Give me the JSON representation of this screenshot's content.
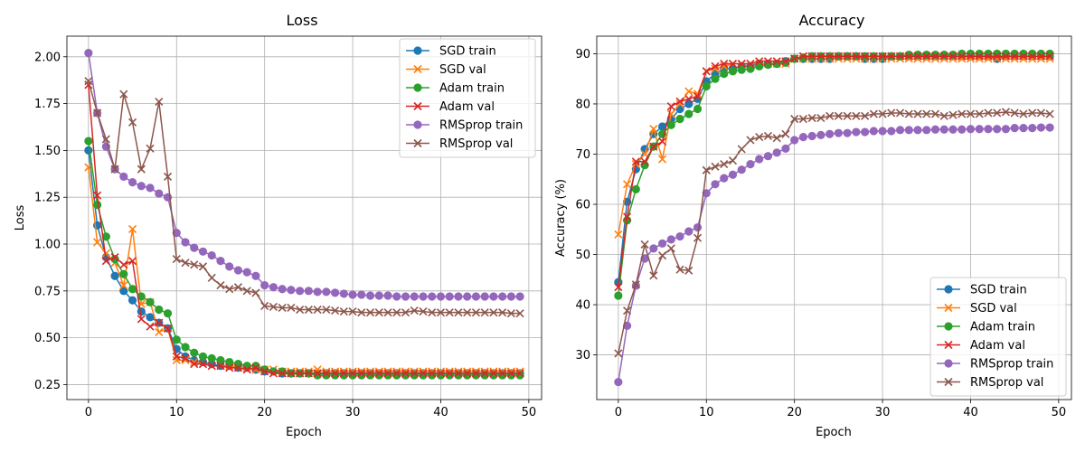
{
  "chart_data": [
    {
      "type": "line",
      "title": "Loss",
      "xlabel": "Epoch",
      "ylabel": "Loss",
      "xlim": [
        -2.45,
        51.45
      ],
      "ylim": [
        0.17,
        2.11
      ],
      "xticks": [
        0,
        10,
        20,
        30,
        40,
        50
      ],
      "yticks": [
        0.25,
        0.5,
        0.75,
        1.0,
        1.25,
        1.5,
        1.75,
        2.0
      ],
      "ytick_labels": [
        "0.25",
        "0.50",
        "0.75",
        "1.00",
        "1.25",
        "1.50",
        "1.75",
        "2.00"
      ],
      "grid": true,
      "legend_position": "top-right",
      "x": [
        0,
        1,
        2,
        3,
        4,
        5,
        6,
        7,
        8,
        9,
        10,
        11,
        12,
        13,
        14,
        15,
        16,
        17,
        18,
        19,
        20,
        21,
        22,
        23,
        24,
        25,
        26,
        27,
        28,
        29,
        30,
        31,
        32,
        33,
        34,
        35,
        36,
        37,
        38,
        39,
        40,
        41,
        42,
        43,
        44,
        45,
        46,
        47,
        48,
        49
      ],
      "series": [
        {
          "name": "SGD train",
          "color": "#1f77b4",
          "marker": "o",
          "values": [
            1.5,
            1.1,
            0.93,
            0.83,
            0.75,
            0.7,
            0.64,
            0.61,
            0.58,
            0.55,
            0.44,
            0.4,
            0.38,
            0.37,
            0.36,
            0.35,
            0.35,
            0.34,
            0.34,
            0.33,
            0.32,
            0.32,
            0.31,
            0.31,
            0.31,
            0.31,
            0.31,
            0.31,
            0.31,
            0.31,
            0.31,
            0.31,
            0.31,
            0.31,
            0.31,
            0.31,
            0.31,
            0.31,
            0.31,
            0.31,
            0.31,
            0.31,
            0.31,
            0.31,
            0.31,
            0.31,
            0.31,
            0.31,
            0.31,
            0.31
          ]
        },
        {
          "name": "SGD val",
          "color": "#ff7f0e",
          "marker": "x",
          "values": [
            1.41,
            1.01,
            0.95,
            0.9,
            0.78,
            1.08,
            0.68,
            0.69,
            0.53,
            0.55,
            0.38,
            0.38,
            0.37,
            0.36,
            0.35,
            0.35,
            0.35,
            0.34,
            0.34,
            0.33,
            0.33,
            0.33,
            0.32,
            0.32,
            0.32,
            0.32,
            0.33,
            0.32,
            0.32,
            0.32,
            0.32,
            0.32,
            0.32,
            0.32,
            0.32,
            0.32,
            0.32,
            0.32,
            0.32,
            0.32,
            0.32,
            0.32,
            0.32,
            0.32,
            0.32,
            0.32,
            0.32,
            0.32,
            0.32,
            0.32
          ]
        },
        {
          "name": "Adam train",
          "color": "#2ca02c",
          "marker": "o",
          "values": [
            1.55,
            1.21,
            1.04,
            0.92,
            0.84,
            0.76,
            0.72,
            0.69,
            0.65,
            0.63,
            0.49,
            0.45,
            0.42,
            0.4,
            0.39,
            0.38,
            0.37,
            0.36,
            0.35,
            0.35,
            0.33,
            0.32,
            0.32,
            0.31,
            0.31,
            0.31,
            0.3,
            0.3,
            0.3,
            0.3,
            0.3,
            0.3,
            0.3,
            0.3,
            0.3,
            0.3,
            0.3,
            0.3,
            0.3,
            0.3,
            0.3,
            0.3,
            0.3,
            0.3,
            0.3,
            0.3,
            0.3,
            0.3,
            0.3,
            0.3
          ]
        },
        {
          "name": "Adam val",
          "color": "#d62728",
          "marker": "x",
          "values": [
            1.85,
            1.26,
            0.91,
            0.93,
            0.89,
            0.91,
            0.6,
            0.56,
            0.58,
            0.55,
            0.4,
            0.39,
            0.36,
            0.36,
            0.35,
            0.35,
            0.34,
            0.34,
            0.33,
            0.34,
            0.32,
            0.31,
            0.31,
            0.31,
            0.31,
            0.31,
            0.31,
            0.31,
            0.31,
            0.31,
            0.31,
            0.31,
            0.31,
            0.31,
            0.31,
            0.31,
            0.31,
            0.31,
            0.31,
            0.31,
            0.31,
            0.31,
            0.31,
            0.31,
            0.31,
            0.31,
            0.31,
            0.31,
            0.31,
            0.31
          ]
        },
        {
          "name": "RMSprop train",
          "color": "#9467bd",
          "marker": "o",
          "values": [
            2.02,
            1.7,
            1.52,
            1.4,
            1.36,
            1.33,
            1.31,
            1.3,
            1.27,
            1.25,
            1.06,
            1.01,
            0.98,
            0.96,
            0.94,
            0.91,
            0.88,
            0.86,
            0.85,
            0.83,
            0.78,
            0.77,
            0.76,
            0.755,
            0.75,
            0.75,
            0.745,
            0.745,
            0.74,
            0.735,
            0.73,
            0.73,
            0.725,
            0.725,
            0.725,
            0.72,
            0.72,
            0.72,
            0.72,
            0.72,
            0.72,
            0.72,
            0.72,
            0.72,
            0.72,
            0.72,
            0.72,
            0.72,
            0.72,
            0.72
          ]
        },
        {
          "name": "RMSprop val",
          "color": "#8c564b",
          "marker": "x",
          "values": [
            1.87,
            1.7,
            1.56,
            1.4,
            1.8,
            1.65,
            1.4,
            1.51,
            1.76,
            1.36,
            0.92,
            0.9,
            0.89,
            0.88,
            0.82,
            0.78,
            0.76,
            0.77,
            0.75,
            0.74,
            0.67,
            0.665,
            0.66,
            0.66,
            0.65,
            0.65,
            0.65,
            0.65,
            0.645,
            0.64,
            0.64,
            0.635,
            0.635,
            0.635,
            0.635,
            0.635,
            0.635,
            0.645,
            0.64,
            0.635,
            0.635,
            0.635,
            0.635,
            0.635,
            0.635,
            0.635,
            0.635,
            0.635,
            0.63,
            0.63
          ]
        }
      ]
    },
    {
      "type": "line",
      "title": "Accuracy",
      "xlabel": "Epoch",
      "ylabel": "Accuracy (%)",
      "xlim": [
        -2.45,
        51.45
      ],
      "ylim": [
        21.1,
        93.5
      ],
      "xticks": [
        0,
        10,
        20,
        30,
        40,
        50
      ],
      "yticks": [
        30,
        40,
        50,
        60,
        70,
        80,
        90
      ],
      "ytick_labels": [
        "30",
        "40",
        "50",
        "60",
        "70",
        "80",
        "90"
      ],
      "grid": true,
      "legend_position": "bottom-right",
      "x": [
        0,
        1,
        2,
        3,
        4,
        5,
        6,
        7,
        8,
        9,
        10,
        11,
        12,
        13,
        14,
        15,
        16,
        17,
        18,
        19,
        20,
        21,
        22,
        23,
        24,
        25,
        26,
        27,
        28,
        29,
        30,
        31,
        32,
        33,
        34,
        35,
        36,
        37,
        38,
        39,
        40,
        41,
        42,
        43,
        44,
        45,
        46,
        47,
        48,
        49
      ],
      "series": [
        {
          "name": "SGD train",
          "color": "#1f77b4",
          "marker": "o",
          "values": [
            44.5,
            60.5,
            67.0,
            71.0,
            74.0,
            75.5,
            77.0,
            79.0,
            80.0,
            81.0,
            84.5,
            86.0,
            87.0,
            87.0,
            87.5,
            87.5,
            88.0,
            88.0,
            88.0,
            88.5,
            89.0,
            89.0,
            89.0,
            89.0,
            89.0,
            89.5,
            89.5,
            89.5,
            89.0,
            89.0,
            89.0,
            89.5,
            89.5,
            89.5,
            89.5,
            89.5,
            89.5,
            89.5,
            89.5,
            89.5,
            89.5,
            89.5,
            89.5,
            89.0,
            89.5,
            89.5,
            89.5,
            89.5,
            89.5,
            89.5
          ]
        },
        {
          "name": "SGD val",
          "color": "#ff7f0e",
          "marker": "x",
          "values": [
            54.0,
            64.0,
            68.0,
            70.0,
            75.0,
            69.0,
            78.0,
            80.0,
            82.5,
            82.0,
            86.5,
            87.0,
            87.5,
            88.0,
            88.0,
            88.0,
            88.0,
            88.0,
            88.0,
            88.0,
            89.0,
            89.0,
            89.0,
            89.0,
            89.0,
            89.0,
            89.0,
            89.0,
            89.0,
            89.0,
            89.0,
            89.0,
            89.0,
            89.0,
            89.0,
            89.0,
            89.0,
            89.0,
            89.0,
            89.0,
            89.0,
            89.0,
            89.0,
            89.0,
            89.0,
            89.0,
            89.0,
            89.0,
            89.0,
            89.0
          ]
        },
        {
          "name": "Adam train",
          "color": "#2ca02c",
          "marker": "o",
          "values": [
            41.8,
            56.8,
            63.0,
            67.8,
            71.5,
            74.0,
            75.8,
            77.0,
            78.0,
            79.0,
            83.5,
            85.0,
            86.0,
            86.5,
            86.8,
            87.0,
            87.5,
            87.8,
            88.0,
            88.2,
            89.0,
            89.2,
            89.5,
            89.5,
            89.5,
            89.5,
            89.5,
            89.5,
            89.5,
            89.5,
            89.5,
            89.5,
            89.5,
            89.8,
            89.8,
            89.8,
            89.8,
            89.8,
            89.8,
            90.0,
            90.0,
            90.0,
            90.0,
            90.0,
            90.0,
            90.0,
            90.0,
            90.0,
            90.0,
            90.0
          ]
        },
        {
          "name": "Adam val",
          "color": "#d62728",
          "marker": "x",
          "values": [
            43.5,
            57.5,
            68.5,
            68.5,
            71.5,
            72.5,
            79.5,
            80.5,
            81.0,
            81.5,
            86.5,
            87.5,
            88.0,
            88.0,
            88.0,
            88.0,
            88.5,
            88.5,
            88.5,
            88.5,
            89.0,
            89.5,
            89.5,
            89.5,
            89.5,
            89.5,
            89.5,
            89.5,
            89.5,
            89.5,
            89.5,
            89.5,
            89.5,
            89.5,
            89.5,
            89.5,
            89.5,
            89.5,
            89.5,
            89.5,
            89.5,
            89.5,
            89.5,
            89.5,
            89.5,
            89.5,
            89.5,
            89.5,
            89.5,
            89.5
          ]
        },
        {
          "name": "RMSprop train",
          "color": "#9467bd",
          "marker": "o",
          "values": [
            24.6,
            35.8,
            43.8,
            49.2,
            51.2,
            52.2,
            53.0,
            53.6,
            54.6,
            55.4,
            62.2,
            64.0,
            65.2,
            65.9,
            66.9,
            68.0,
            69.0,
            69.6,
            70.3,
            71.1,
            72.8,
            73.4,
            73.6,
            73.8,
            74.0,
            74.2,
            74.2,
            74.4,
            74.4,
            74.6,
            74.6,
            74.6,
            74.8,
            74.8,
            74.8,
            74.8,
            74.9,
            74.9,
            74.9,
            74.9,
            75.0,
            75.0,
            75.0,
            75.0,
            75.0,
            75.2,
            75.2,
            75.2,
            75.3,
            75.3
          ]
        },
        {
          "name": "RMSprop val",
          "color": "#8c564b",
          "marker": "x",
          "values": [
            30.3,
            38.8,
            44.0,
            52.0,
            45.8,
            49.8,
            51.2,
            47.0,
            46.8,
            53.3,
            66.8,
            67.5,
            68.0,
            68.7,
            71.0,
            72.8,
            73.4,
            73.6,
            73.2,
            74.0,
            77.0,
            77.0,
            77.2,
            77.2,
            77.6,
            77.6,
            77.6,
            77.6,
            77.6,
            78.0,
            78.0,
            78.2,
            78.2,
            78.0,
            78.0,
            78.0,
            78.0,
            77.6,
            77.8,
            78.0,
            78.0,
            78.0,
            78.2,
            78.2,
            78.4,
            78.2,
            78.0,
            78.2,
            78.2,
            78.0
          ]
        }
      ]
    }
  ]
}
